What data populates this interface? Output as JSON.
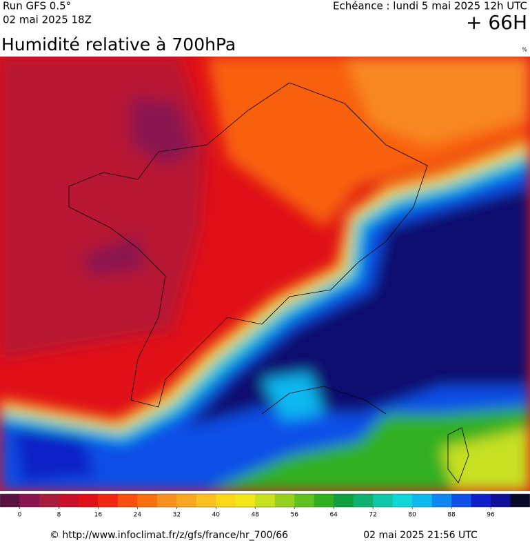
{
  "header": {
    "run": "Run GFS 0.5°",
    "run_date": "02 mai 2025 18Z",
    "valid": "Echéance : lundi 5 mai 2025 12h UTC",
    "lead": "+ 66H"
  },
  "title": "Humidité relative à 700hPa",
  "unit": "%",
  "colorbar": {
    "colors": [
      "#5a1040",
      "#8a1550",
      "#a81c3c",
      "#c8102a",
      "#e01018",
      "#f02810",
      "#f85010",
      "#f87010",
      "#f89020",
      "#f8a820",
      "#f8c020",
      "#f8d818",
      "#f0e818",
      "#c8e020",
      "#98d020",
      "#60c020",
      "#30b020",
      "#10a040",
      "#10b070",
      "#10c8a8",
      "#10d8d8",
      "#10b8f0",
      "#1088f0",
      "#1050e8",
      "#1020c8",
      "#101098",
      "#080828"
    ],
    "ticks": [
      0,
      8,
      16,
      24,
      32,
      40,
      48,
      56,
      64,
      72,
      80,
      88,
      96
    ]
  },
  "footer": {
    "source": "© http://www.infoclimat.fr/z/gfs/france/hr_700/66",
    "generated": "02 mai 2025 21:56 UTC"
  }
}
